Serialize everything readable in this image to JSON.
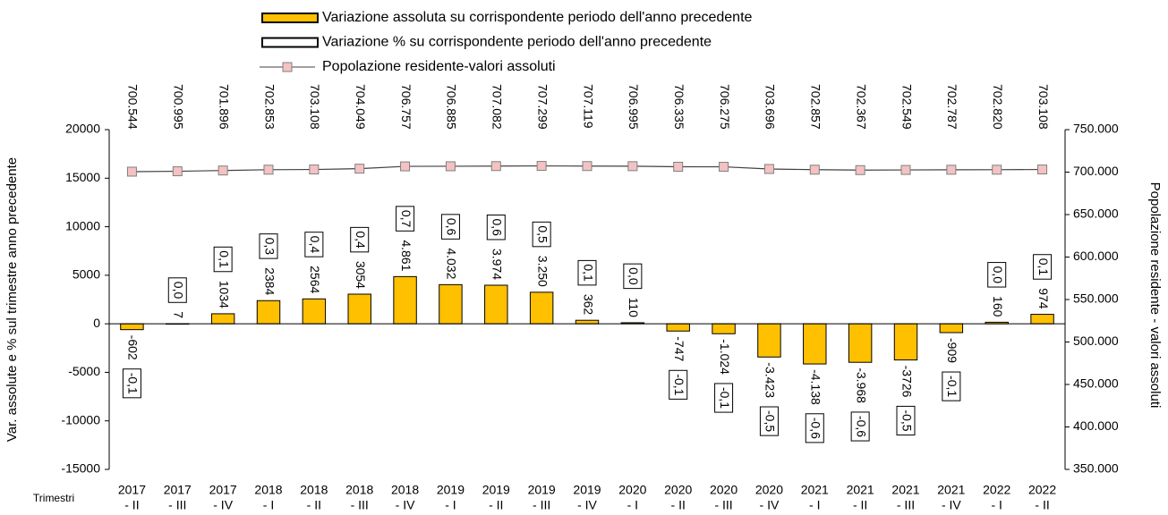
{
  "chart_data": {
    "type": "bar",
    "y_label": "Var. assolute e % sul trimestre anno precedente",
    "y2_label": "Popolazione residente - valori assoluti",
    "x_label": "Trimestri",
    "categories": [
      [
        "2017",
        "- II"
      ],
      [
        "2017",
        "- III"
      ],
      [
        "2017",
        "- IV"
      ],
      [
        "2018",
        "- I"
      ],
      [
        "2018",
        "- II"
      ],
      [
        "2018",
        "- III"
      ],
      [
        "2018",
        "- IV"
      ],
      [
        "2019",
        "- I"
      ],
      [
        "2019",
        "- II"
      ],
      [
        "2019",
        "- III"
      ],
      [
        "2019",
        "- IV"
      ],
      [
        "2020",
        "- I"
      ],
      [
        "2020",
        "- II"
      ],
      [
        "2020",
        "- III"
      ],
      [
        "2020",
        "- IV"
      ],
      [
        "2021",
        "- I"
      ],
      [
        "2021",
        "- II"
      ],
      [
        "2021",
        "- III"
      ],
      [
        "2021",
        "- IV"
      ],
      [
        "2022",
        "- I"
      ],
      [
        "2022",
        "- II"
      ]
    ],
    "series": [
      {
        "name": "Variazione assoluta su corrispondente periodo dell'anno precedente",
        "type": "bar",
        "color": "#ffc000",
        "values": [
          -602,
          7,
          1034,
          2384,
          2564,
          3054,
          4861,
          4032,
          3974,
          3250,
          362,
          110,
          -747,
          -1024,
          -3423,
          -4138,
          -3968,
          -3726,
          -909,
          160,
          974
        ],
        "value_labels": [
          "-602",
          "7",
          "1034",
          "2384",
          "2564",
          "3054",
          "4.861",
          "4.032",
          "3.974",
          "3.250",
          "362",
          "110",
          "-747",
          "-1.024",
          "-3.423",
          "-4.138",
          "-3.968",
          "-3726",
          "-909",
          "160",
          "974"
        ]
      },
      {
        "name": "Variazione % su corrispondente periodo dell'anno precedente",
        "type": "label",
        "color": "#ffffff",
        "values": [
          -0.1,
          0.0,
          0.1,
          0.3,
          0.4,
          0.4,
          0.7,
          0.6,
          0.6,
          0.5,
          0.1,
          0.0,
          -0.1,
          -0.1,
          -0.5,
          -0.6,
          -0.6,
          -0.5,
          -0.1,
          0.0,
          0.1
        ],
        "value_labels": [
          "-0,1",
          "0,0",
          "0,1",
          "0,3",
          "0,4",
          "0,4",
          "0,7",
          "0,6",
          "0,6",
          "0,5",
          "0,1",
          "0,0",
          "-0,1",
          "-0,1",
          "-0,5",
          "-0,6",
          "-0,6",
          "-0,5",
          "-0,1",
          "0,0",
          "0,1"
        ]
      },
      {
        "name": "Popolazione residente-valori assoluti",
        "type": "line",
        "axis": "y2",
        "color": "#f4c2c2",
        "line_color": "#404040",
        "values": [
          700544,
          700995,
          701896,
          702853,
          703108,
          704049,
          706757,
          706885,
          707082,
          707299,
          707119,
          706995,
          706335,
          706275,
          703696,
          702857,
          702367,
          702549,
          702787,
          702820,
          703108
        ],
        "value_labels": [
          "700.544",
          "700.995",
          "701.896",
          "702.853",
          "703.108",
          "704.049",
          "706.757",
          "706.885",
          "707.082",
          "707.299",
          "707.119",
          "706.995",
          "706.335",
          "706.275",
          "703.696",
          "702.857",
          "702.367",
          "702.549",
          "702.787",
          "702.820",
          "703.108"
        ]
      }
    ],
    "ylim": [
      -15000,
      20000
    ],
    "yticks": [
      -15000,
      -10000,
      -5000,
      0,
      5000,
      10000,
      15000,
      20000
    ],
    "y2lim": [
      350000,
      750000
    ],
    "y2ticks": [
      {
        "value": 350000,
        "label": "350.000"
      },
      {
        "value": 400000,
        "label": "400.000"
      },
      {
        "value": 450000,
        "label": "450.000"
      },
      {
        "value": 500000,
        "label": "500.000"
      },
      {
        "value": 550000,
        "label": "550.000"
      },
      {
        "value": 600000,
        "label": "600.000"
      },
      {
        "value": 650000,
        "label": "650.000"
      },
      {
        "value": 700000,
        "label": "700.000"
      },
      {
        "value": 750000,
        "label": "750.000"
      }
    ],
    "legend": "top"
  }
}
